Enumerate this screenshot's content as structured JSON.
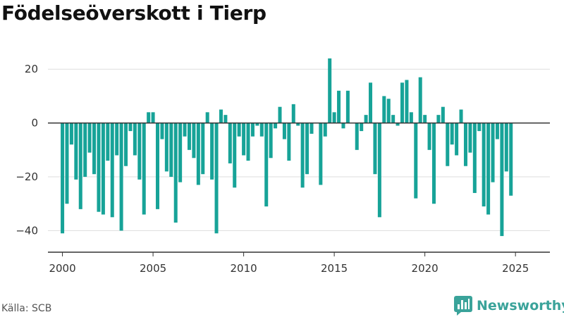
{
  "title": "Födelseöverskott i Tierp",
  "source": "Källa: SCB",
  "brand": {
    "name": "Newsworthy",
    "icon": "newsworthy-logo-icon"
  },
  "colors": {
    "bar": "#17a398",
    "grid": "#dddddd",
    "zero": "#333333",
    "axis": "#333333",
    "brand": "#3aa39a"
  },
  "chart_data": {
    "type": "bar",
    "title": "Födelseöverskott i Tierp",
    "xlabel": "",
    "ylabel": "",
    "ylim": [
      -48,
      30
    ],
    "xlim": [
      1999.2,
      2026.9
    ],
    "grid": true,
    "x_ticks": [
      2000,
      2005,
      2010,
      2015,
      2020,
      2025
    ],
    "x_tick_labels": [
      "2000",
      "2005",
      "2010",
      "2015",
      "2020",
      "2025"
    ],
    "y_ticks": [
      20,
      0,
      -20,
      -40
    ],
    "y_tick_labels": [
      "20",
      "0",
      "−20",
      "−40"
    ],
    "start_year": 2000,
    "periods_per_year": 4,
    "series": [
      {
        "values": [
          -41,
          -30,
          -8,
          -21,
          -32,
          -20,
          -11,
          -19,
          -33,
          -34,
          -14,
          -35,
          -12,
          -40,
          -16,
          -3,
          -12,
          -21,
          -34,
          4,
          4,
          -32,
          -6,
          -18,
          -20,
          -37,
          -22,
          -5,
          -10,
          -13,
          -23,
          -19,
          4,
          -21,
          -41,
          5,
          3,
          -15,
          -24,
          -5,
          -12,
          -14,
          -5,
          -1,
          -5,
          -31,
          -13,
          -2,
          6,
          -6,
          -14,
          7,
          -1,
          -24,
          -19,
          -4,
          0,
          -23,
          -5,
          24,
          4,
          12,
          -2,
          12,
          0,
          -10,
          -3,
          3,
          15,
          -19,
          -35,
          10,
          9,
          3,
          -1,
          15,
          16,
          4,
          -28,
          17,
          3,
          -10,
          -30,
          3,
          6,
          -16,
          -8,
          -12,
          5,
          -16,
          -11,
          -26,
          -3,
          -31,
          -34,
          -22,
          -6,
          -42,
          -18,
          -27
        ]
      }
    ]
  }
}
